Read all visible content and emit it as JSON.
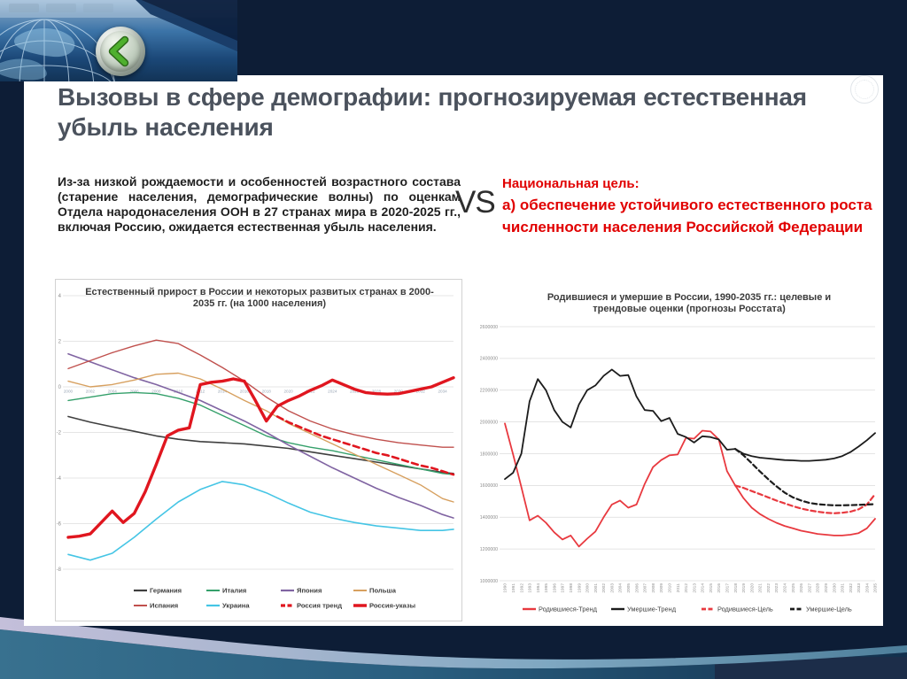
{
  "slide": {
    "title": "Вызовы в сфере демографии: прогнозируемая естественная убыль населения",
    "body_text": "Из-за низкой рождаемости и особенностей возрастного состава (старение населения, демографические волны) по оценкам Отдела народонаселения ООН в 27 странах мира в 2020-2025 гг., включая Россию, ожидается естественная убыль населения.",
    "vs_label": "VS",
    "goal_heading": "Национальная цель:",
    "goal_line1": "а) обеспечение устойчивого естественного роста",
    "goal_line2": "численности населения Российской Федерации",
    "back_button_icon": "chevron-left"
  },
  "colors": {
    "background_navy": "#0d1d36",
    "panel": "#ffffff",
    "title_text": "#4b525d",
    "body_text": "#1f1f1f",
    "accent_red": "#e10000",
    "grid_gray": "#dcdcdc",
    "teal_swoosh": "#2f6787",
    "lavender_band": "#c4bfda",
    "back_arrow_green": "#4fb02e"
  },
  "chart_data": [
    {
      "type": "line",
      "title": "Естественный прирост в России и некоторых развитых странах в 2000-2035 гг. (на 1000 населения)",
      "title_lines": [
        "Естественный прирост в России и некоторых развитых странах в 2000-",
        "2035 гг. (на 1000 населения)"
      ],
      "xlabel": "",
      "ylabel": "",
      "x_range": [
        2000,
        2035
      ],
      "ylim": [
        -8,
        4
      ],
      "yticks": [
        4,
        2,
        0,
        -2,
        -4,
        -6,
        -8
      ],
      "xticks": [
        2000,
        2002,
        2004,
        2006,
        2008,
        2010,
        2012,
        2014,
        2016,
        2018,
        2020,
        2022,
        2024,
        2026,
        2028,
        2030,
        2032,
        2034
      ],
      "grid": true,
      "legend_position": "bottom",
      "series": [
        {
          "name": "Германия",
          "color": "#3f3f3f",
          "style": "solid",
          "line_width": 1.6,
          "x": [
            2000,
            2002,
            2004,
            2006,
            2008,
            2010,
            2012,
            2014,
            2016,
            2018,
            2020,
            2022,
            2024,
            2026,
            2028,
            2030,
            2032,
            2034,
            2035
          ],
          "values": [
            -1.3,
            -1.55,
            -1.75,
            -1.95,
            -2.15,
            -2.3,
            -2.4,
            -2.45,
            -2.5,
            -2.6,
            -2.7,
            -2.85,
            -3.0,
            -3.15,
            -3.3,
            -3.45,
            -3.6,
            -3.75,
            -3.8
          ]
        },
        {
          "name": "Италия",
          "color": "#35a06b",
          "style": "solid",
          "line_width": 1.4,
          "x": [
            2000,
            2002,
            2004,
            2006,
            2008,
            2010,
            2012,
            2014,
            2016,
            2018,
            2020,
            2022,
            2024,
            2026,
            2028,
            2030,
            2032,
            2034,
            2035
          ],
          "values": [
            -0.6,
            -0.45,
            -0.3,
            -0.25,
            -0.3,
            -0.5,
            -0.8,
            -1.25,
            -1.7,
            -2.15,
            -2.45,
            -2.65,
            -2.8,
            -3.0,
            -3.2,
            -3.4,
            -3.6,
            -3.8,
            -3.85
          ]
        },
        {
          "name": "Япония",
          "color": "#8064a2",
          "style": "solid",
          "line_width": 1.6,
          "x": [
            2000,
            2002,
            2004,
            2006,
            2008,
            2010,
            2012,
            2014,
            2016,
            2018,
            2020,
            2022,
            2024,
            2026,
            2028,
            2030,
            2032,
            2034,
            2035
          ],
          "values": [
            1.45,
            1.1,
            0.75,
            0.4,
            0.1,
            -0.25,
            -0.6,
            -1.05,
            -1.5,
            -2.0,
            -2.55,
            -3.05,
            -3.55,
            -4.0,
            -4.45,
            -4.85,
            -5.2,
            -5.6,
            -5.75
          ]
        },
        {
          "name": "Польша",
          "color": "#d7a05f",
          "style": "solid",
          "line_width": 1.4,
          "x": [
            2000,
            2002,
            2004,
            2006,
            2008,
            2010,
            2012,
            2014,
            2016,
            2018,
            2020,
            2022,
            2024,
            2026,
            2028,
            2030,
            2032,
            2034,
            2035
          ],
          "values": [
            0.25,
            0.0,
            0.1,
            0.3,
            0.55,
            0.6,
            0.35,
            -0.1,
            -0.6,
            -1.05,
            -1.6,
            -2.05,
            -2.5,
            -2.95,
            -3.4,
            -3.85,
            -4.3,
            -4.9,
            -5.05
          ]
        },
        {
          "name": "Испания",
          "color": "#c0504d",
          "style": "solid",
          "line_width": 1.4,
          "x": [
            2000,
            2002,
            2004,
            2006,
            2008,
            2010,
            2012,
            2014,
            2016,
            2018,
            2020,
            2022,
            2024,
            2026,
            2028,
            2030,
            2032,
            2034,
            2035
          ],
          "values": [
            0.8,
            1.15,
            1.5,
            1.8,
            2.05,
            1.9,
            1.4,
            0.85,
            0.25,
            -0.45,
            -1.05,
            -1.5,
            -1.85,
            -2.1,
            -2.3,
            -2.45,
            -2.55,
            -2.65,
            -2.65
          ]
        },
        {
          "name": "Украина",
          "color": "#45c5e5",
          "style": "solid",
          "line_width": 1.6,
          "x": [
            2000,
            2002,
            2004,
            2006,
            2008,
            2010,
            2012,
            2014,
            2016,
            2018,
            2020,
            2022,
            2024,
            2026,
            2028,
            2030,
            2032,
            2034,
            2035
          ],
          "values": [
            -7.35,
            -7.6,
            -7.3,
            -6.6,
            -5.8,
            -5.05,
            -4.5,
            -4.15,
            -4.3,
            -4.65,
            -5.1,
            -5.5,
            -5.75,
            -5.95,
            -6.1,
            -6.2,
            -6.3,
            -6.3,
            -6.25
          ]
        },
        {
          "name": "Россия тренд",
          "color": "#e0161f",
          "style": "dashed",
          "line_width": 2.6,
          "x_start": 2019,
          "values": [
            -1.3,
            -1.55,
            -1.75,
            -1.95,
            -2.15,
            -2.3,
            -2.45,
            -2.6,
            -2.75,
            -2.9,
            -3.0,
            -3.15,
            -3.3,
            -3.45,
            -3.55,
            -3.7,
            -3.85
          ]
        },
        {
          "name": "Россия-указы",
          "color": "#e0161f",
          "style": "solid",
          "line_width": 3.4,
          "x_start": 2000,
          "values": [
            -6.6,
            -6.55,
            -6.45,
            -5.95,
            -5.45,
            -5.95,
            -5.55,
            -4.6,
            -3.4,
            -2.15,
            -1.9,
            -1.8,
            0.1,
            0.2,
            0.25,
            0.35,
            0.25,
            -0.6,
            -1.5,
            -0.85,
            -0.6,
            -0.4,
            -0.15,
            0.05,
            0.3,
            0.1,
            -0.1,
            -0.25,
            -0.3,
            -0.32,
            -0.3,
            -0.2,
            -0.1,
            0.0,
            0.2,
            0.4
          ]
        }
      ]
    },
    {
      "type": "line",
      "title": "Родившиеся и умершие в России,  1990-2035 гг.:  целевые и трендовые оценки (прогнозы Росстата)",
      "title_lines": [
        "Родившиеся и умершие в России,  1990-2035 гг.:  целевые и",
        "трендовые оценки (прогнозы Росстата)"
      ],
      "xlabel": "",
      "ylabel": "",
      "x_range": [
        1990,
        2035
      ],
      "ylim": [
        1000000,
        2600000
      ],
      "yticks": [
        2600000,
        2400000,
        2200000,
        2000000,
        1800000,
        1600000,
        1400000,
        1200000,
        1000000
      ],
      "xticks": [
        1990,
        1991,
        1992,
        1993,
        1994,
        1995,
        1996,
        1997,
        1998,
        1999,
        2000,
        2001,
        2002,
        2003,
        2004,
        2005,
        2006,
        2007,
        2008,
        2009,
        2010,
        2011,
        2012,
        2013,
        2014,
        2015,
        2016,
        2017,
        2018,
        2019,
        2020,
        2021,
        2022,
        2023,
        2024,
        2025,
        2026,
        2027,
        2028,
        2029,
        2030,
        2031,
        2032,
        2033,
        2034,
        2035
      ],
      "grid": true,
      "legend_position": "bottom",
      "series": [
        {
          "name": "Родившиеся-Тренд",
          "color": "#e8393f",
          "style": "solid",
          "line_width": 1.8,
          "x_start": 1990,
          "values": [
            1990000,
            1795000,
            1590000,
            1380000,
            1410000,
            1365000,
            1305000,
            1260000,
            1285000,
            1215000,
            1265000,
            1310000,
            1400000,
            1480000,
            1505000,
            1460000,
            1480000,
            1610000,
            1715000,
            1760000,
            1790000,
            1795000,
            1900000,
            1895000,
            1945000,
            1940000,
            1890000,
            1690000,
            1600000,
            1520000,
            1460000,
            1420000,
            1390000,
            1365000,
            1345000,
            1330000,
            1315000,
            1305000,
            1295000,
            1290000,
            1285000,
            1285000,
            1290000,
            1300000,
            1330000,
            1390000
          ]
        },
        {
          "name": "Умершие-Тренд",
          "color": "#1c1c1c",
          "style": "solid",
          "line_width": 1.8,
          "x_start": 1990,
          "values": [
            1640000,
            1680000,
            1800000,
            2130000,
            2270000,
            2200000,
            2075000,
            2000000,
            1965000,
            2110000,
            2200000,
            2230000,
            2290000,
            2330000,
            2290000,
            2295000,
            2160000,
            2075000,
            2070000,
            2005000,
            2025000,
            1925000,
            1905000,
            1870000,
            1910000,
            1905000,
            1890000,
            1825000,
            1830000,
            1800000,
            1785000,
            1775000,
            1770000,
            1765000,
            1760000,
            1758000,
            1755000,
            1755000,
            1758000,
            1762000,
            1770000,
            1785000,
            1810000,
            1845000,
            1885000,
            1930000
          ]
        },
        {
          "name": "Родившиеся-Цель",
          "color": "#e8393f",
          "style": "dashed",
          "line_width": 2.2,
          "x_start": 2018,
          "values": [
            1600000,
            1585000,
            1565000,
            1545000,
            1525000,
            1505000,
            1487000,
            1470000,
            1455000,
            1443000,
            1435000,
            1428000,
            1425000,
            1428000,
            1435000,
            1450000,
            1480000,
            1545000
          ]
        },
        {
          "name": "Умершие-Цель",
          "color": "#1c1c1c",
          "style": "dashed",
          "line_width": 2.2,
          "x_start": 2018,
          "values": [
            1830000,
            1790000,
            1740000,
            1688000,
            1640000,
            1595000,
            1555000,
            1525000,
            1505000,
            1490000,
            1482000,
            1478000,
            1475000,
            1475000,
            1476000,
            1478000,
            1480000,
            1482000
          ]
        }
      ]
    }
  ]
}
